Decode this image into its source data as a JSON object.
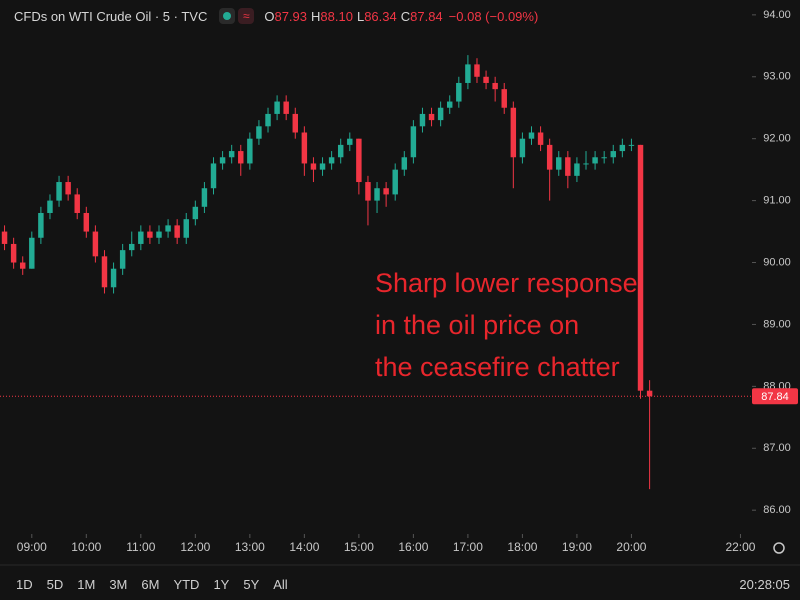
{
  "chart_data": {
    "type": "candlestick",
    "title": "CFDs on WTI Crude Oil · 5 · TVC",
    "ohlc_labels": [
      {
        "label": "O",
        "value": "87.93"
      },
      {
        "label": "H",
        "value": "88.10"
      },
      {
        "label": "L",
        "value": "86.34"
      },
      {
        "label": "C",
        "value": "87.84"
      }
    ],
    "change_label": "−0.08 (−0.09%)",
    "annotation": [
      "Sharp lower response",
      "in the oil price on",
      "the ceasefire chatter"
    ],
    "up_color": "#22ab94",
    "down_color": "#f23645",
    "grid": false,
    "x": [
      510,
      520,
      530,
      540,
      550,
      560,
      570,
      580,
      590,
      600,
      610,
      620,
      630,
      640,
      650,
      660,
      670,
      680,
      690,
      700,
      710,
      720,
      730,
      740,
      750,
      760,
      770,
      780,
      790,
      800,
      810,
      820,
      830,
      840,
      850,
      860,
      870,
      880,
      890,
      900,
      910,
      920,
      930,
      940,
      950,
      960,
      970,
      980,
      990,
      1000,
      1010,
      1020,
      1030,
      1040,
      1050,
      1060,
      1070,
      1080,
      1090,
      1100,
      1110,
      1120,
      1130,
      1140,
      1150,
      1160,
      1170,
      1180,
      1190,
      1200,
      1210,
      1220
    ],
    "open": [
      90.5,
      90.3,
      90.0,
      89.9,
      90.4,
      90.8,
      91.0,
      91.3,
      91.1,
      90.8,
      90.5,
      90.1,
      89.6,
      89.9,
      90.2,
      90.3,
      90.5,
      90.4,
      90.5,
      90.6,
      90.4,
      90.7,
      90.9,
      91.2,
      91.6,
      91.7,
      91.8,
      91.6,
      92.0,
      92.2,
      92.4,
      92.6,
      92.4,
      92.1,
      91.6,
      91.5,
      91.6,
      91.7,
      91.9,
      92.0,
      91.3,
      91.0,
      91.2,
      91.1,
      91.5,
      91.7,
      92.2,
      92.4,
      92.3,
      92.5,
      92.6,
      92.9,
      93.2,
      93.0,
      92.9,
      92.8,
      92.5,
      91.7,
      92.0,
      92.1,
      91.9,
      91.5,
      91.7,
      91.4,
      91.6,
      91.6,
      91.7,
      91.7,
      91.8,
      91.9,
      91.9,
      87.93
    ],
    "high": [
      90.6,
      90.4,
      90.1,
      90.5,
      90.9,
      91.1,
      91.4,
      91.4,
      91.2,
      90.9,
      90.6,
      90.2,
      90.0,
      90.3,
      90.5,
      90.6,
      90.6,
      90.6,
      90.7,
      90.7,
      90.8,
      91.0,
      91.3,
      91.7,
      91.8,
      91.9,
      91.9,
      92.1,
      92.3,
      92.5,
      92.7,
      92.7,
      92.5,
      92.2,
      91.7,
      91.7,
      91.8,
      92.0,
      92.1,
      92.0,
      91.4,
      91.3,
      91.3,
      91.6,
      91.8,
      92.3,
      92.5,
      92.5,
      92.6,
      92.7,
      93.0,
      93.35,
      93.3,
      93.1,
      93.0,
      92.9,
      92.6,
      92.1,
      92.2,
      92.2,
      92.0,
      91.8,
      91.8,
      91.7,
      91.8,
      91.8,
      91.8,
      91.9,
      92.0,
      92.0,
      91.9,
      88.1
    ],
    "low": [
      90.2,
      89.9,
      89.8,
      89.9,
      90.3,
      90.7,
      90.9,
      91.0,
      90.7,
      90.4,
      90.0,
      89.5,
      89.5,
      89.8,
      90.1,
      90.2,
      90.3,
      90.3,
      90.4,
      90.3,
      90.3,
      90.6,
      90.8,
      91.1,
      91.5,
      91.6,
      91.4,
      91.5,
      91.9,
      92.1,
      92.3,
      92.3,
      92.0,
      91.4,
      91.3,
      91.4,
      91.5,
      91.6,
      91.8,
      91.1,
      90.6,
      90.8,
      90.9,
      91.0,
      91.4,
      91.6,
      92.1,
      92.2,
      92.2,
      92.4,
      92.5,
      92.8,
      92.9,
      92.8,
      92.6,
      92.4,
      91.2,
      91.6,
      91.9,
      91.8,
      91.0,
      91.4,
      91.2,
      91.3,
      91.5,
      91.5,
      91.6,
      91.6,
      91.7,
      91.8,
      87.8,
      86.34
    ],
    "close": [
      90.3,
      90.0,
      89.9,
      90.4,
      90.8,
      91.0,
      91.3,
      91.1,
      90.8,
      90.5,
      90.1,
      89.6,
      89.9,
      90.2,
      90.3,
      90.5,
      90.4,
      90.5,
      90.6,
      90.4,
      90.7,
      90.9,
      91.2,
      91.6,
      91.7,
      91.8,
      91.6,
      92.0,
      92.2,
      92.4,
      92.6,
      92.4,
      92.1,
      91.6,
      91.5,
      91.6,
      91.7,
      91.9,
      92.0,
      91.3,
      91.0,
      91.2,
      91.1,
      91.5,
      91.7,
      92.2,
      92.4,
      92.3,
      92.5,
      92.6,
      92.9,
      93.2,
      93.0,
      92.9,
      92.8,
      92.5,
      91.7,
      92.0,
      92.1,
      91.9,
      91.5,
      91.7,
      91.4,
      91.6,
      91.6,
      91.7,
      91.7,
      91.8,
      91.9,
      91.9,
      87.93,
      87.84
    ],
    "xlim": [
      505,
      1325
    ],
    "xticks": [
      {
        "value": 540,
        "label": "09:00"
      },
      {
        "value": 600,
        "label": "10:00"
      },
      {
        "value": 660,
        "label": "11:00"
      },
      {
        "value": 720,
        "label": "12:00"
      },
      {
        "value": 780,
        "label": "13:00"
      },
      {
        "value": 840,
        "label": "14:00"
      },
      {
        "value": 900,
        "label": "15:00"
      },
      {
        "value": 960,
        "label": "16:00"
      },
      {
        "value": 1020,
        "label": "17:00"
      },
      {
        "value": 1080,
        "label": "18:00"
      },
      {
        "value": 1140,
        "label": "19:00"
      },
      {
        "value": 1200,
        "label": "20:00"
      },
      {
        "value": 1320,
        "label": "22:00"
      }
    ],
    "ylim": [
      85.68,
      94.24
    ],
    "yticks": [
      {
        "value": 94,
        "label": "94.00"
      },
      {
        "value": 93,
        "label": "93.00"
      },
      {
        "value": 92,
        "label": "92.00"
      },
      {
        "value": 91,
        "label": "91.00"
      },
      {
        "value": 90,
        "label": "90.00"
      },
      {
        "value": 89,
        "label": "89.00"
      },
      {
        "value": 88,
        "label": "88.00"
      },
      {
        "value": 87,
        "label": "87.00"
      },
      {
        "value": 86,
        "label": "86.00"
      }
    ]
  },
  "toolbar": {
    "ranges": [
      "1D",
      "5D",
      "1M",
      "3M",
      "6M",
      "YTD",
      "1Y",
      "5Y",
      "All"
    ],
    "clock": "20:28:05"
  }
}
